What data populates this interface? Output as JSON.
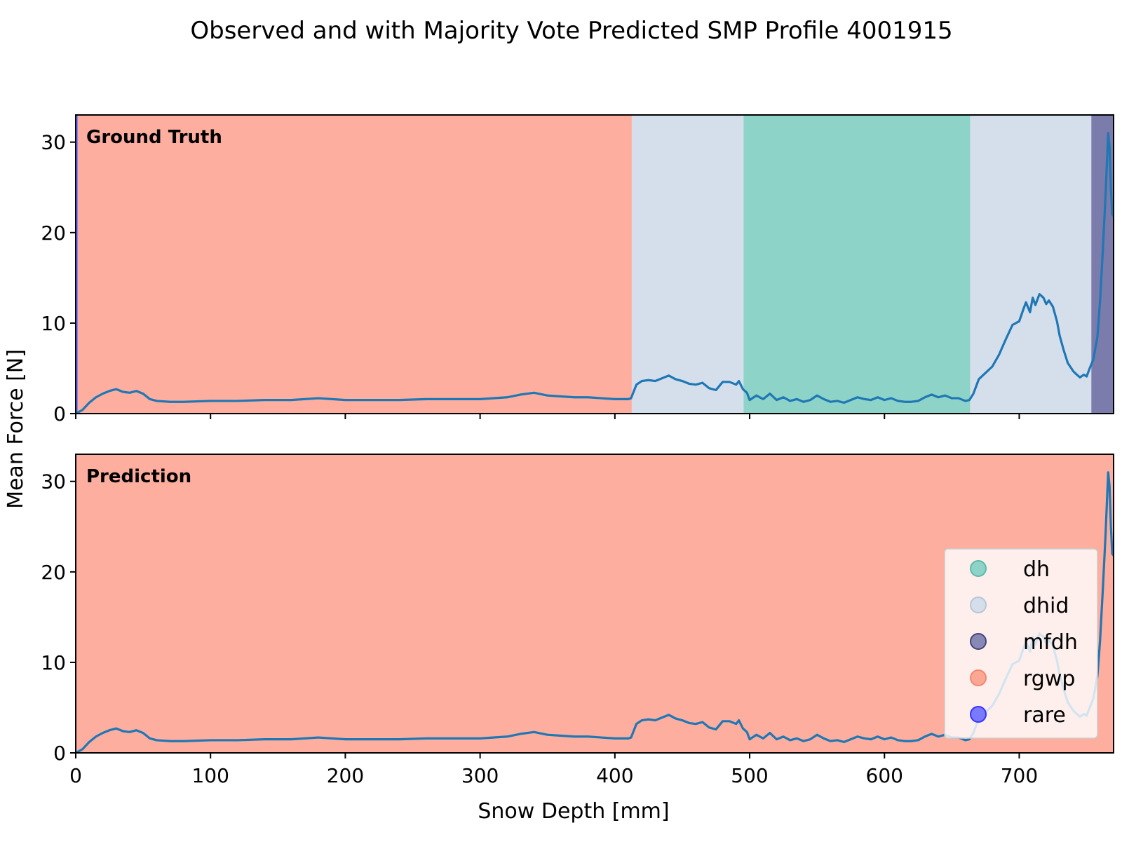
{
  "chart_data": {
    "type": "line",
    "title": "Observed and with Majority Vote Predicted SMP Profile 4001915",
    "xlabel": "Snow Depth [mm]",
    "ylabel": "Mean Force [N]",
    "xlim": [
      0,
      770
    ],
    "ylim": [
      0,
      33
    ],
    "xticks": [
      0,
      100,
      200,
      300,
      400,
      500,
      600,
      700
    ],
    "yticks": [
      0,
      10,
      20,
      30
    ],
    "colors": {
      "line": "#1f77b4",
      "dh": "#8dd3c7",
      "dhid": "#d5dfec",
      "mfdh": "#7b7bac",
      "rgwp": "#fdae9f",
      "rare": "#7a7aff"
    },
    "legend": {
      "position": "lower-right",
      "entries": [
        {
          "label": "dh",
          "color": "#8dd3c7",
          "edge": "#5fb8aa"
        },
        {
          "label": "dhid",
          "color": "#d5dfec",
          "edge": "#b8c4d8"
        },
        {
          "label": "mfdh",
          "color": "#8888b4",
          "edge": "#44447a"
        },
        {
          "label": "rgwp",
          "color": "#fca794",
          "edge": "#f08870"
        },
        {
          "label": "rare",
          "color": "#7a7aff",
          "edge": "#3333ff"
        }
      ]
    },
    "panels": [
      {
        "label": "Ground Truth",
        "segments": [
          {
            "class": "rare",
            "start": 0,
            "end": 2
          },
          {
            "class": "rgwp",
            "start": 2,
            "end": 413
          },
          {
            "class": "dhid",
            "start": 413,
            "end": 496
          },
          {
            "class": "dh",
            "start": 496,
            "end": 664
          },
          {
            "class": "dhid",
            "start": 664,
            "end": 754
          },
          {
            "class": "mfdh",
            "start": 754,
            "end": 770
          }
        ]
      },
      {
        "label": "Prediction",
        "segments": [
          {
            "class": "rgwp",
            "start": 0,
            "end": 770
          }
        ]
      }
    ],
    "series": [
      {
        "name": "Mean Force",
        "x": [
          0,
          5,
          10,
          15,
          20,
          25,
          30,
          35,
          40,
          45,
          50,
          55,
          60,
          70,
          80,
          100,
          120,
          140,
          160,
          180,
          200,
          220,
          240,
          260,
          280,
          300,
          320,
          330,
          340,
          350,
          360,
          370,
          380,
          390,
          400,
          410,
          412,
          416,
          420,
          425,
          430,
          435,
          440,
          445,
          450,
          455,
          460,
          465,
          470,
          475,
          480,
          485,
          490,
          492,
          495,
          498,
          500,
          505,
          510,
          515,
          520,
          525,
          530,
          535,
          540,
          545,
          550,
          555,
          560,
          565,
          570,
          575,
          580,
          585,
          590,
          595,
          600,
          605,
          610,
          615,
          620,
          625,
          630,
          635,
          640,
          645,
          650,
          655,
          660,
          663,
          666,
          670,
          675,
          680,
          685,
          690,
          695,
          700,
          703,
          705,
          708,
          710,
          712,
          715,
          718,
          720,
          722,
          725,
          728,
          730,
          733,
          736,
          740,
          742,
          745,
          748,
          750,
          752,
          755,
          758,
          760,
          762,
          764,
          765,
          766,
          767,
          768,
          769,
          770
        ],
        "y": [
          0,
          0.4,
          1.2,
          1.8,
          2.2,
          2.5,
          2.7,
          2.4,
          2.3,
          2.5,
          2.2,
          1.6,
          1.4,
          1.3,
          1.3,
          1.4,
          1.4,
          1.5,
          1.5,
          1.7,
          1.5,
          1.5,
          1.5,
          1.6,
          1.6,
          1.6,
          1.8,
          2.1,
          2.3,
          2.0,
          1.9,
          1.8,
          1.8,
          1.7,
          1.6,
          1.6,
          1.7,
          3.2,
          3.6,
          3.7,
          3.6,
          3.9,
          4.2,
          3.8,
          3.6,
          3.3,
          3.2,
          3.4,
          2.8,
          2.6,
          3.5,
          3.5,
          3.2,
          3.6,
          2.7,
          2.3,
          1.5,
          2.0,
          1.6,
          2.2,
          1.5,
          1.8,
          1.4,
          1.6,
          1.3,
          1.5,
          2.0,
          1.6,
          1.3,
          1.4,
          1.2,
          1.5,
          1.8,
          1.6,
          1.5,
          1.8,
          1.5,
          1.7,
          1.4,
          1.3,
          1.3,
          1.4,
          1.8,
          2.1,
          1.8,
          2.0,
          1.7,
          1.7,
          1.4,
          1.5,
          2.2,
          3.8,
          4.5,
          5.2,
          6.5,
          8.2,
          9.8,
          10.2,
          11.5,
          12.3,
          11.2,
          12.8,
          12.0,
          13.2,
          12.8,
          12.1,
          12.5,
          11.8,
          10.2,
          8.6,
          7.0,
          5.6,
          4.7,
          4.4,
          4.0,
          4.3,
          4.1,
          4.9,
          6.0,
          8.5,
          12.5,
          18.0,
          24.0,
          27.5,
          31.0,
          29.5,
          25.0,
          22.0,
          21.8
        ]
      }
    ]
  }
}
